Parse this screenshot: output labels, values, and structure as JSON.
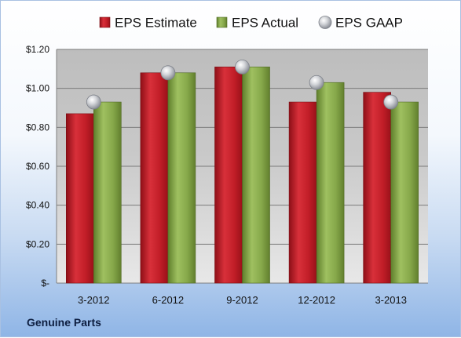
{
  "footer": {
    "label": "Genuine Parts"
  },
  "colors": {
    "estimate": "#c8202a",
    "actual": "#8db050",
    "gaap": "#c9ccd2"
  },
  "chart_data": {
    "type": "bar",
    "categories": [
      "3-2012",
      "6-2012",
      "9-2012",
      "12-2012",
      "3-2013"
    ],
    "series": [
      {
        "name": "EPS Estimate",
        "type": "bar",
        "values": [
          0.87,
          1.08,
          1.11,
          0.93,
          0.98
        ]
      },
      {
        "name": "EPS Actual",
        "type": "bar",
        "values": [
          0.93,
          1.08,
          1.11,
          1.03,
          0.93
        ]
      },
      {
        "name": "EPS GAAP",
        "type": "scatter",
        "values": [
          0.93,
          1.08,
          1.11,
          1.03,
          0.93
        ]
      }
    ],
    "yticks": [
      "$-",
      "$0.20",
      "$0.40",
      "$0.60",
      "$0.80",
      "$1.00",
      "$1.20"
    ],
    "ylim": [
      0,
      1.2
    ],
    "grid": true,
    "legend": "top"
  }
}
